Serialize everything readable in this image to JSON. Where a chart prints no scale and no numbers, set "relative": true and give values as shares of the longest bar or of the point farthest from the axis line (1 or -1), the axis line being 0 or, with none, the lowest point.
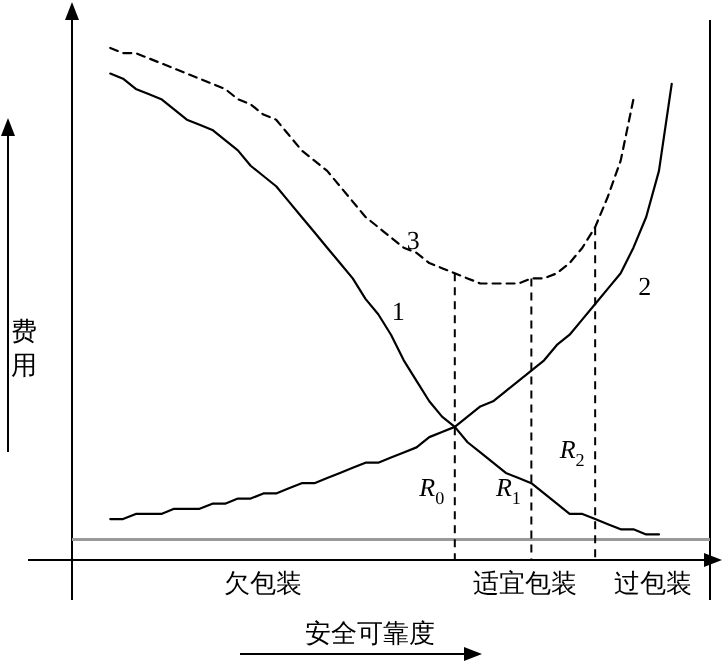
{
  "chart_data": {
    "type": "line",
    "relative": true,
    "xlabel": "安全可靠度",
    "ylabel": "费用",
    "categories": [
      null,
      null,
      null,
      null,
      null,
      null,
      null,
      null,
      null,
      null,
      null,
      null,
      null,
      null,
      null,
      null,
      null,
      null,
      null,
      null,
      null,
      null,
      null,
      null,
      null,
      null,
      null,
      null,
      null,
      null,
      null,
      null,
      null,
      null,
      null,
      null,
      null,
      null,
      null,
      null,
      null,
      null,
      null,
      null,
      null,
      null,
      null,
      null,
      null,
      null,
      null
    ],
    "series": [
      {
        "name": "1",
        "color": "#000000",
        "line_style": "solid",
        "values": [
          null,
          null,
          null,
          0.95,
          0.94,
          0.92,
          0.91,
          0.9,
          0.88,
          0.86,
          0.85,
          0.84,
          0.82,
          0.8,
          0.77,
          0.75,
          0.73,
          0.7,
          0.67,
          0.64,
          0.61,
          0.58,
          0.55,
          0.51,
          0.48,
          0.44,
          0.39,
          0.35,
          0.31,
          0.28,
          0.26,
          0.23,
          0.21,
          0.19,
          0.17,
          0.16,
          0.15,
          0.13,
          0.11,
          0.09,
          0.09,
          0.08,
          0.07,
          0.06,
          0.06,
          0.05,
          0.05,
          null,
          null,
          null,
          null
        ]
      },
      {
        "name": "2",
        "color": "#000000",
        "line_style": "solid",
        "values": [
          null,
          null,
          null,
          0.08,
          0.08,
          0.09,
          0.09,
          0.09,
          0.1,
          0.1,
          0.1,
          0.11,
          0.11,
          0.12,
          0.12,
          0.13,
          0.13,
          0.14,
          0.15,
          0.15,
          0.16,
          0.17,
          0.18,
          0.19,
          0.19,
          0.2,
          0.21,
          0.22,
          0.24,
          0.25,
          0.26,
          0.28,
          0.3,
          0.31,
          0.33,
          0.35,
          0.37,
          0.39,
          0.42,
          0.44,
          0.47,
          0.5,
          0.53,
          0.56,
          0.61,
          0.67,
          0.76,
          0.93,
          null,
          null,
          null
        ]
      },
      {
        "name": "3",
        "color": "#000000",
        "line_style": "dashed",
        "values": [
          null,
          null,
          null,
          1,
          0.99,
          0.99,
          0.98,
          0.97,
          0.96,
          0.95,
          0.94,
          0.93,
          0.92,
          0.9,
          0.89,
          0.87,
          0.86,
          0.83,
          0.8,
          0.78,
          0.76,
          0.73,
          0.7,
          0.67,
          0.65,
          0.63,
          0.61,
          0.6,
          0.58,
          0.57,
          0.56,
          0.55,
          0.54,
          0.54,
          0.54,
          0.54,
          0.55,
          0.55,
          0.56,
          0.58,
          0.61,
          0.65,
          0.71,
          0.78,
          0.9,
          null,
          null,
          null,
          null,
          null,
          null
        ]
      }
    ],
    "ref_lines": [
      {
        "axis": "y",
        "value": 0.04,
        "color": "#999999",
        "line_style": "solid"
      }
    ],
    "annotations": [
      "R$_{0}$",
      "R$_{1}$",
      "R$_{2}$",
      "欠包装",
      "适宜包装",
      "过包装"
    ]
  }
}
